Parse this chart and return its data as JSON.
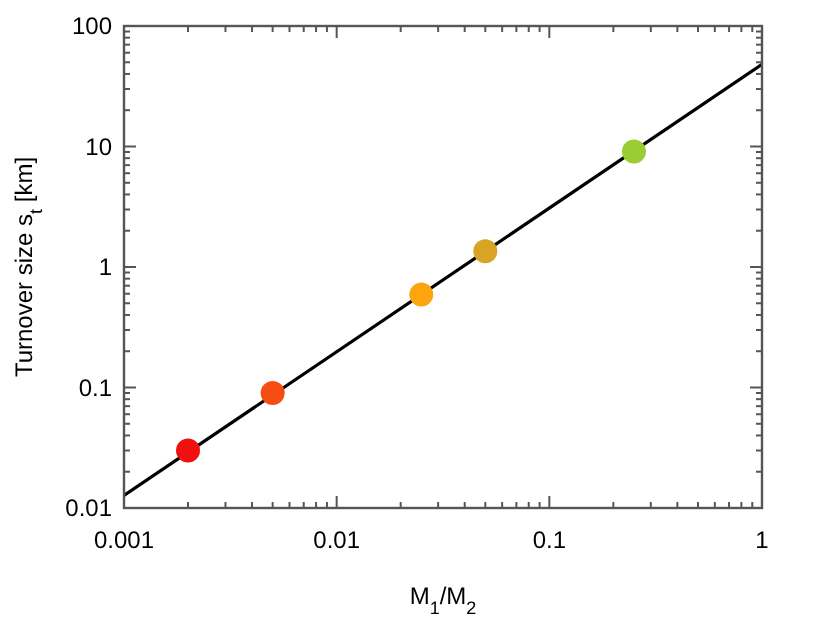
{
  "chart_data": {
    "type": "scatter",
    "xlabel": "M$_{1}$/M$_{2}$",
    "ylabel": "Turnover size s$_{t}$ [km]",
    "log": "xy",
    "marker": "circle",
    "grid": false,
    "xlim": [
      0.001,
      1
    ],
    "ylim": [
      0.01,
      100
    ],
    "xticks": [
      0.001,
      {
        "value": 0.002,
        "label": null
      },
      {
        "value": 0.003,
        "label": null
      },
      {
        "value": 0.004,
        "label": null
      },
      {
        "value": 0.005,
        "label": null
      },
      {
        "value": 0.006,
        "label": null
      },
      {
        "value": 0.007,
        "label": null
      },
      {
        "value": 0.008,
        "label": null
      },
      {
        "value": 0.009,
        "label": null
      },
      0.01,
      {
        "value": 0.02,
        "label": null
      },
      {
        "value": 0.03,
        "label": null
      },
      {
        "value": 0.04,
        "label": null
      },
      {
        "value": 0.05,
        "label": null
      },
      {
        "value": 0.06,
        "label": null
      },
      {
        "value": 0.07,
        "label": null
      },
      {
        "value": 0.08,
        "label": null
      },
      {
        "value": 0.09,
        "label": null
      },
      0.1,
      {
        "value": 0.2,
        "label": null
      },
      {
        "value": 0.3,
        "label": null
      },
      {
        "value": 0.4,
        "label": null
      },
      {
        "value": 0.5,
        "label": null
      },
      {
        "value": 0.6,
        "label": null
      },
      {
        "value": 0.7,
        "label": null
      },
      {
        "value": 0.8,
        "label": null
      },
      {
        "value": 0.9,
        "label": null
      },
      1
    ],
    "yticks": [
      0.01,
      {
        "value": 0.02,
        "label": null
      },
      {
        "value": 0.03,
        "label": null
      },
      {
        "value": 0.04,
        "label": null
      },
      {
        "value": 0.05,
        "label": null
      },
      {
        "value": 0.06,
        "label": null
      },
      {
        "value": 0.07,
        "label": null
      },
      {
        "value": 0.08,
        "label": null
      },
      {
        "value": 0.09,
        "label": null
      },
      0.1,
      {
        "value": 0.2,
        "label": null
      },
      {
        "value": 0.3,
        "label": null
      },
      {
        "value": 0.4,
        "label": null
      },
      {
        "value": 0.5,
        "label": null
      },
      {
        "value": 0.6,
        "label": null
      },
      {
        "value": 0.7,
        "label": null
      },
      {
        "value": 0.8,
        "label": null
      },
      {
        "value": 0.9,
        "label": null
      },
      1,
      {
        "value": 2,
        "label": null
      },
      {
        "value": 3,
        "label": null
      },
      {
        "value": 4,
        "label": null
      },
      {
        "value": 5,
        "label": null
      },
      {
        "value": 6,
        "label": null
      },
      {
        "value": 7,
        "label": null
      },
      {
        "value": 8,
        "label": null
      },
      {
        "value": 9,
        "label": null
      },
      10,
      {
        "value": 20,
        "label": null
      },
      {
        "value": 30,
        "label": null
      },
      {
        "value": 40,
        "label": null
      },
      {
        "value": 50,
        "label": null
      },
      {
        "value": 60,
        "label": null
      },
      {
        "value": 70,
        "label": null
      },
      {
        "value": 80,
        "label": null
      },
      {
        "value": 90,
        "label": null
      },
      100
    ],
    "series": [
      {
        "type": "line",
        "color": "#000000",
        "line_style": "solid",
        "marker": "none",
        "x": [
          0.001,
          1
        ],
        "values": [
          0.0127,
          48
        ]
      },
      {
        "x": [
          0.002,
          0.005,
          0.025,
          0.05,
          0.25
        ],
        "values": [
          0.03,
          0.09,
          0.59,
          1.35,
          9.1
        ],
        "colors": [
          "#f01010",
          "#f54d12",
          "#fda50f",
          "#d9a326",
          "#9acd32"
        ]
      }
    ]
  }
}
